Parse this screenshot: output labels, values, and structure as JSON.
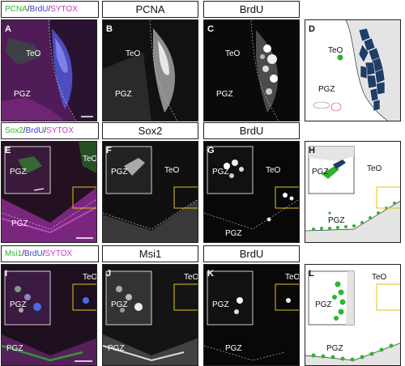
{
  "rows": [
    {
      "headers": [
        {
          "parts": [
            {
              "text": "PCNA",
              "color": "#2db52d"
            },
            {
              "text": " / ",
              "color": "#111"
            },
            {
              "text": "BrdU",
              "color": "#3b3bd6"
            },
            {
              "text": " / ",
              "color": "#111"
            },
            {
              "text": "SYTOX",
              "color": "#c23cc2"
            }
          ]
        },
        {
          "parts": [
            {
              "text": "PCNA",
              "color": "#111"
            }
          ]
        },
        {
          "parts": [
            {
              "text": "BrdU",
              "color": "#111"
            }
          ]
        }
      ],
      "panels": [
        {
          "letter": "A",
          "regions": [
            "TeO",
            "PGZ"
          ]
        },
        {
          "letter": "B",
          "regions": [
            "TeO",
            "PGZ"
          ]
        },
        {
          "letter": "C",
          "regions": [
            "TeO",
            "PGZ"
          ]
        },
        {
          "letter": "D",
          "regions": [
            "TeO",
            "PGZ"
          ]
        }
      ]
    },
    {
      "headers": [
        {
          "parts": [
            {
              "text": "Sox2",
              "color": "#2db52d"
            },
            {
              "text": " / ",
              "color": "#111"
            },
            {
              "text": "BrdU",
              "color": "#3b3bd6"
            },
            {
              "text": " / ",
              "color": "#111"
            },
            {
              "text": "SYTOX",
              "color": "#c23cc2"
            }
          ]
        },
        {
          "parts": [
            {
              "text": "Sox2",
              "color": "#111"
            }
          ]
        },
        {
          "parts": [
            {
              "text": "BrdU",
              "color": "#111"
            }
          ]
        }
      ],
      "panels": [
        {
          "letter": "E",
          "regions": [
            "TeO",
            "PGZ",
            "PGZ"
          ]
        },
        {
          "letter": "F",
          "regions": [
            "TeO",
            "PGZ"
          ]
        },
        {
          "letter": "G",
          "regions": [
            "TeO",
            "PGZ",
            "PGZ"
          ]
        },
        {
          "letter": "H",
          "regions": [
            "TeO",
            "PGZ",
            "PGZ"
          ]
        }
      ]
    },
    {
      "headers": [
        {
          "parts": [
            {
              "text": "Msi1",
              "color": "#2db52d"
            },
            {
              "text": " / ",
              "color": "#111"
            },
            {
              "text": "BrdU",
              "color": "#3b3bd6"
            },
            {
              "text": " / ",
              "color": "#111"
            },
            {
              "text": "SYTOX",
              "color": "#c23cc2"
            }
          ]
        },
        {
          "parts": [
            {
              "text": "Msi1",
              "color": "#111"
            }
          ]
        },
        {
          "parts": [
            {
              "text": "BrdU",
              "color": "#111"
            }
          ]
        }
      ],
      "panels": [
        {
          "letter": "I",
          "regions": [
            "TeO",
            "PGZ",
            "PGZ"
          ]
        },
        {
          "letter": "J",
          "regions": [
            "TeO",
            "PGZ",
            "PGZ"
          ]
        },
        {
          "letter": "K",
          "regions": [
            "TeO",
            "PGZ",
            "PGZ"
          ]
        },
        {
          "letter": "L",
          "regions": [
            "TeO",
            "PGZ",
            "PGZ"
          ]
        }
      ]
    }
  ],
  "colors": {
    "green": "#2db52d",
    "blue": "#3b3bd6",
    "magenta": "#c23cc2",
    "schematic_blue": "#1f3d66",
    "highlight_box": "#e0c31a"
  }
}
